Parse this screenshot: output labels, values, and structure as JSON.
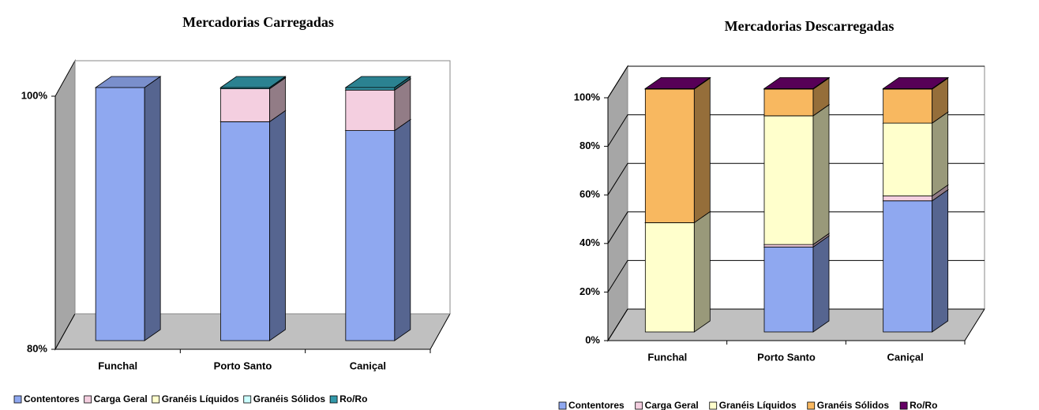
{
  "chart_data": [
    {
      "type": "bar3d_stacked",
      "title": "Mercadorias Carregadas",
      "categories": [
        "Funchal",
        "Porto Santo",
        "Caniçal"
      ],
      "series": [
        {
          "name": "Contentores",
          "color": "#8fa8f0",
          "values": [
            100,
            97.3,
            96.6
          ]
        },
        {
          "name": "Carga Geral",
          "color": "#f4cfe0",
          "values": [
            0,
            2.6,
            3.2
          ]
        },
        {
          "name": "Granéis Líquidos",
          "color": "#ffffcc",
          "values": [
            0,
            0,
            0
          ]
        },
        {
          "name": "Granéis Sólidos",
          "color": "#ccffff",
          "values": [
            0,
            0,
            0
          ]
        },
        {
          "name": "Ro/Ro",
          "color": "#3399aa",
          "values": [
            0,
            0.1,
            0.2
          ]
        }
      ],
      "ylim": [
        80,
        100
      ],
      "yticks": [
        {
          "value": 80,
          "label": "80%"
        },
        {
          "value": 100,
          "label": "100%"
        }
      ],
      "grid": false
    },
    {
      "type": "bar3d_stacked",
      "title": "Mercadorias Descarregadas",
      "categories": [
        "Funchal",
        "Porto Santo",
        "Caniçal"
      ],
      "series": [
        {
          "name": "Contentores",
          "color": "#8fa8f0",
          "values": [
            0,
            35,
            54
          ]
        },
        {
          "name": "Carga Geral",
          "color": "#f4cfe0",
          "values": [
            0,
            1,
            2
          ]
        },
        {
          "name": "Granéis Líquidos",
          "color": "#ffffcc",
          "values": [
            45,
            53,
            30
          ]
        },
        {
          "name": "Granéis Sólidos",
          "color": "#f8b860",
          "values": [
            55,
            11,
            14
          ]
        },
        {
          "name": "Ro/Ro",
          "color": "#660066",
          "values": [
            0.2,
            0.2,
            0.2
          ]
        }
      ],
      "ylim": [
        0,
        100
      ],
      "yticks": [
        {
          "value": 0,
          "label": "0%"
        },
        {
          "value": 20,
          "label": "20%"
        },
        {
          "value": 40,
          "label": "40%"
        },
        {
          "value": 60,
          "label": "60%"
        },
        {
          "value": 80,
          "label": "80%"
        },
        {
          "value": 100,
          "label": "100%"
        }
      ],
      "grid": true
    }
  ]
}
